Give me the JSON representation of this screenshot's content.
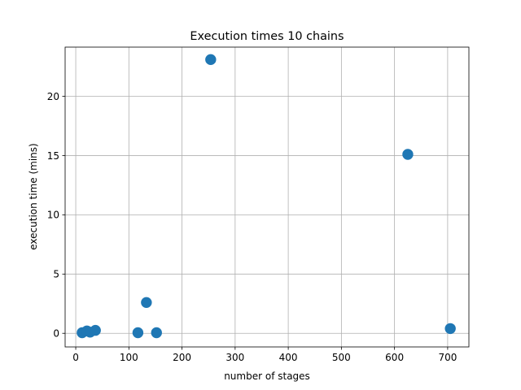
{
  "chart_data": {
    "type": "scatter",
    "title": "Execution times 10 chains",
    "xlabel": "number of stages",
    "ylabel": "execution time (mins)",
    "xlim": [
      -20,
      740
    ],
    "ylim": [
      -1.15,
      24.15
    ],
    "xticks": [
      0,
      100,
      200,
      300,
      400,
      500,
      600,
      700
    ],
    "yticks": [
      0,
      5,
      10,
      15,
      20
    ],
    "grid": true,
    "marker_color": "#1f77b4",
    "points": [
      {
        "x": 12,
        "y": 0.05
      },
      {
        "x": 21,
        "y": 0.2
      },
      {
        "x": 27,
        "y": 0.1
      },
      {
        "x": 37,
        "y": 0.25
      },
      {
        "x": 117,
        "y": 0.05
      },
      {
        "x": 133,
        "y": 2.6
      },
      {
        "x": 152,
        "y": 0.05
      },
      {
        "x": 254,
        "y": 23.1
      },
      {
        "x": 625,
        "y": 15.1
      },
      {
        "x": 705,
        "y": 0.4
      }
    ]
  }
}
